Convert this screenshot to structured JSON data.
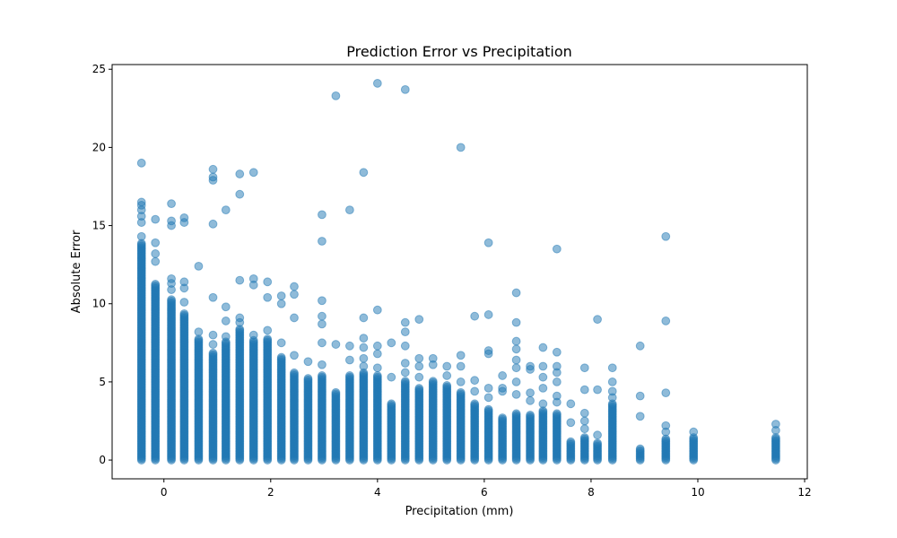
{
  "chart_data": {
    "type": "scatter",
    "title": "Prediction Error vs Precipitation",
    "xlabel": "Precipitation (mm)",
    "ylabel": "Absolute Error",
    "xlim": [
      -0.97,
      12.05
    ],
    "ylim": [
      -1.2,
      25.3
    ],
    "xticks": [
      0,
      2,
      4,
      6,
      8,
      10,
      12
    ],
    "yticks": [
      0,
      5,
      10,
      15,
      20,
      25
    ],
    "grid": false,
    "marker_color": "#1f77b4",
    "marker_alpha": 0.5,
    "columns": [
      {
        "x": -0.42,
        "ymax": 13.9,
        "outliers": [
          14.3,
          15.2,
          15.6,
          16.0,
          16.3,
          16.5,
          19.0
        ]
      },
      {
        "x": -0.16,
        "ymax": 11.3,
        "outliers": [
          12.7,
          13.2,
          13.9,
          15.4
        ]
      },
      {
        "x": 0.14,
        "ymax": 10.3,
        "outliers": [
          10.9,
          11.3,
          11.6,
          15.0,
          15.3,
          16.4
        ]
      },
      {
        "x": 0.38,
        "ymax": 9.4,
        "outliers": [
          10.1,
          11.0,
          11.4,
          15.2,
          15.5
        ]
      },
      {
        "x": 0.65,
        "ymax": 7.8,
        "outliers": [
          8.2,
          12.4
        ]
      },
      {
        "x": 0.92,
        "ymax": 6.9,
        "outliers": [
          7.4,
          8.0,
          10.4,
          15.1,
          17.9,
          18.1,
          18.6
        ]
      },
      {
        "x": 1.16,
        "ymax": 7.6,
        "outliers": [
          7.9,
          8.9,
          9.8,
          16.0
        ]
      },
      {
        "x": 1.42,
        "ymax": 8.4,
        "outliers": [
          8.8,
          9.1,
          11.5,
          17.0,
          18.3
        ]
      },
      {
        "x": 1.68,
        "ymax": 7.7,
        "outliers": [
          8.0,
          11.2,
          11.6,
          18.4
        ]
      },
      {
        "x": 1.94,
        "ymax": 7.8,
        "outliers": [
          8.3,
          10.4,
          11.4
        ]
      },
      {
        "x": 2.2,
        "ymax": 6.6,
        "outliers": [
          7.5,
          10.0,
          10.5
        ]
      },
      {
        "x": 2.44,
        "ymax": 5.6,
        "outliers": [
          6.7,
          9.1,
          10.6,
          11.1
        ]
      },
      {
        "x": 2.7,
        "ymax": 5.3,
        "outliers": [
          6.3
        ]
      },
      {
        "x": 2.96,
        "ymax": 5.4,
        "outliers": [
          6.1,
          7.5,
          8.7,
          9.2,
          10.2,
          14.0,
          15.7
        ]
      },
      {
        "x": 3.22,
        "ymax": 4.4,
        "outliers": [
          7.4,
          23.3
        ]
      },
      {
        "x": 3.48,
        "ymax": 5.4,
        "outliers": [
          6.4,
          7.3,
          16.0
        ]
      },
      {
        "x": 3.74,
        "ymax": 5.6,
        "outliers": [
          6.0,
          6.5,
          7.2,
          7.8,
          9.1,
          18.4
        ]
      },
      {
        "x": 4.0,
        "ymax": 5.4,
        "outliers": [
          5.9,
          6.8,
          7.3,
          9.6,
          24.1
        ]
      },
      {
        "x": 4.26,
        "ymax": 3.6,
        "outliers": [
          5.3,
          7.5
        ]
      },
      {
        "x": 4.52,
        "ymax": 5.1,
        "outliers": [
          5.6,
          6.2,
          7.3,
          8.2,
          8.8,
          23.7
        ]
      },
      {
        "x": 4.78,
        "ymax": 4.6,
        "outliers": [
          5.3,
          6.0,
          6.5,
          9.0
        ]
      },
      {
        "x": 5.04,
        "ymax": 5.1,
        "outliers": [
          6.1,
          6.5
        ]
      },
      {
        "x": 5.3,
        "ymax": 4.8,
        "outliers": [
          5.4,
          6.0
        ]
      },
      {
        "x": 5.56,
        "ymax": 4.4,
        "outliers": [
          5.0,
          6.0,
          6.7,
          20.0
        ]
      },
      {
        "x": 5.82,
        "ymax": 3.6,
        "outliers": [
          4.4,
          5.1,
          9.2
        ]
      },
      {
        "x": 6.08,
        "ymax": 3.3,
        "outliers": [
          4.0,
          4.6,
          6.8,
          7.0,
          9.3,
          13.9
        ]
      },
      {
        "x": 6.34,
        "ymax": 2.7,
        "outliers": [
          4.4,
          4.6,
          5.4
        ]
      },
      {
        "x": 6.6,
        "ymax": 3.0,
        "outliers": [
          4.2,
          5.0,
          5.9,
          6.4,
          7.1,
          7.6,
          8.8,
          10.7
        ]
      },
      {
        "x": 6.86,
        "ymax": 2.9,
        "outliers": [
          3.8,
          4.3,
          5.8,
          6.0
        ]
      },
      {
        "x": 7.1,
        "ymax": 3.2,
        "outliers": [
          3.6,
          4.6,
          5.3,
          6.0,
          7.2
        ]
      },
      {
        "x": 7.36,
        "ymax": 3.0,
        "outliers": [
          3.7,
          4.1,
          5.0,
          5.6,
          6.0,
          6.9,
          13.5
        ]
      },
      {
        "x": 7.62,
        "ymax": 1.2,
        "outliers": [
          2.4,
          3.6
        ]
      },
      {
        "x": 7.88,
        "ymax": 1.5,
        "outliers": [
          2.0,
          2.5,
          3.0,
          4.5,
          5.9
        ]
      },
      {
        "x": 8.12,
        "ymax": 1.1,
        "outliers": [
          1.6,
          4.5,
          9.0
        ]
      },
      {
        "x": 8.4,
        "ymax": 3.6,
        "outliers": [
          4.0,
          4.4,
          5.0,
          5.9
        ]
      },
      {
        "x": 8.92,
        "ymax": 0.8,
        "outliers": [
          2.8,
          4.1,
          7.3
        ]
      },
      {
        "x": 9.4,
        "ymax": 1.4,
        "outliers": [
          1.8,
          2.2,
          4.3,
          8.9,
          14.3
        ]
      },
      {
        "x": 9.92,
        "ymax": 1.5,
        "outliers": [
          1.8
        ]
      },
      {
        "x": 11.46,
        "ymax": 1.5,
        "outliers": [
          1.9,
          2.3
        ]
      }
    ]
  }
}
